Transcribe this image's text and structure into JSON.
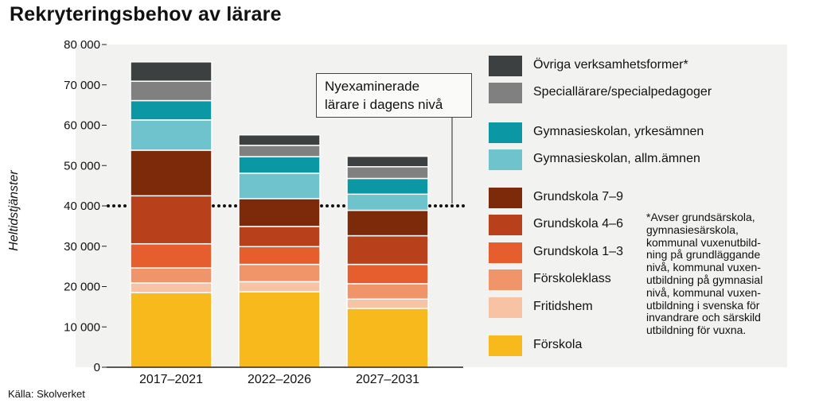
{
  "title": "Rekryteringsbehov av lärare",
  "source": "Källa: Skolverket",
  "callout": "Nyexaminerade\nlärare i dagens nivå",
  "footnote": "*Avser grundsärskola,\ngymnasiesärskola,\nkommunal vuxenutbild-\nning på grundläggande\nnivå, kommunal vuxen-\nutbildning på gymnasial\nnivå, kommunal vuxen-\nutbildning i svenska för\ninvandrare och särskild\nutbildning för vuxna.",
  "chart_data": {
    "type": "bar",
    "stacked": true,
    "ylabel": "Heltidstjänster",
    "xlabel": "",
    "ylim": [
      0,
      80000
    ],
    "yticks": [
      0,
      10000,
      20000,
      30000,
      40000,
      50000,
      60000,
      70000,
      80000
    ],
    "ytick_labels": [
      "0",
      "10 000",
      "20 000",
      "30 000",
      "40 000",
      "50 000",
      "60 000",
      "70 000",
      "80 000"
    ],
    "categories": [
      "2017–2021",
      "2022–2026",
      "2027–2031"
    ],
    "reference_line": {
      "value": 40000,
      "label": "Nyexaminerade lärare i dagens nivå",
      "style": "dotted"
    },
    "series": [
      {
        "name": "Förskola",
        "color": "#f7b91b",
        "values": [
          18500,
          18700,
          14600
        ]
      },
      {
        "name": "Fritidshem",
        "color": "#f8c3a4",
        "values": [
          2400,
          2500,
          2300
        ]
      },
      {
        "name": "Förskoleklass",
        "color": "#ef9569",
        "values": [
          3700,
          4300,
          3800
        ]
      },
      {
        "name": "Grundskola 1–3",
        "color": "#e75e2e",
        "values": [
          6000,
          4400,
          4800
        ]
      },
      {
        "name": "Grundskola 4–6",
        "color": "#b8401a",
        "values": [
          11900,
          5000,
          7100
        ]
      },
      {
        "name": "Grundskola 7–9",
        "color": "#7d2a0a",
        "values": [
          11300,
          6900,
          6300
        ]
      },
      {
        "name": "Gymnasieskolan, allm.ämnen",
        "color": "#6ec3cc",
        "values": [
          7500,
          6300,
          4000
        ]
      },
      {
        "name": "Gymnasieskolan, yrkesämnen",
        "color": "#0b97a3",
        "values": [
          4800,
          4100,
          3900
        ]
      },
      {
        "name": "Speciallärare/specialpedagoger",
        "color": "#808080",
        "values": [
          4800,
          2800,
          2900
        ]
      },
      {
        "name": "Övriga verksamhetsformer*",
        "color": "#3c4041",
        "values": [
          4800,
          2600,
          2600
        ]
      }
    ],
    "legend_order": [
      9,
      8,
      7,
      6,
      5,
      4,
      3,
      2,
      1,
      0
    ]
  }
}
